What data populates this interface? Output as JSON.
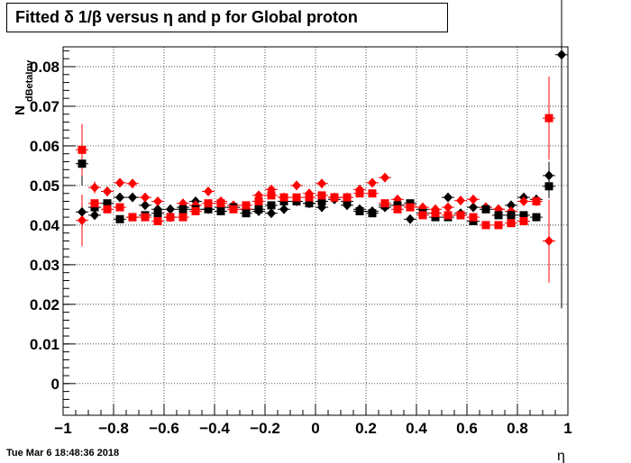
{
  "title": "Fitted δ 1/β versus η and p for Global proton",
  "timestamp": "Tue Mar  6 18:48:36 2018",
  "chart_data": {
    "type": "scatter",
    "title": "Fitted δ 1/β versus η and p for Global proton",
    "xlabel": "η",
    "ylabel": "dBetaInv",
    "ylabel_prefix": "N",
    "xlim": [
      -1,
      1
    ],
    "ylim": [
      -0.008,
      0.085
    ],
    "xticks": [
      -1,
      -0.8,
      -0.6,
      -0.4,
      -0.2,
      0,
      0.2,
      0.4,
      0.6,
      0.8,
      1
    ],
    "xticklabels": [
      "−1",
      "−0.8",
      "−0.6",
      "−0.4",
      "−0.2",
      "0",
      "0.2",
      "0.4",
      "0.6",
      "0.8",
      "1"
    ],
    "yticks": [
      0,
      0.01,
      0.02,
      0.03,
      0.04,
      0.05,
      0.06,
      0.07,
      0.08
    ],
    "yticklabels": [
      "0",
      "0.01",
      "0.02",
      "0.03",
      "0.04",
      "0.05",
      "0.06",
      "0.07",
      "0.08"
    ],
    "grid": true,
    "series": [
      {
        "marker": "diamond",
        "color": "#000000",
        "points": [
          {
            "x": -0.925,
            "y": 0.0433
          },
          {
            "x": -0.875,
            "y": 0.0425
          },
          {
            "x": -0.825,
            "y": 0.0485
          },
          {
            "x": -0.775,
            "y": 0.047
          },
          {
            "x": -0.725,
            "y": 0.047
          },
          {
            "x": -0.675,
            "y": 0.045
          },
          {
            "x": -0.625,
            "y": 0.044
          },
          {
            "x": -0.575,
            "y": 0.044
          },
          {
            "x": -0.525,
            "y": 0.0445
          },
          {
            "x": -0.475,
            "y": 0.046
          },
          {
            "x": -0.425,
            "y": 0.044
          },
          {
            "x": -0.375,
            "y": 0.0445
          },
          {
            "x": -0.325,
            "y": 0.0445
          },
          {
            "x": -0.275,
            "y": 0.044
          },
          {
            "x": -0.225,
            "y": 0.0435
          },
          {
            "x": -0.175,
            "y": 0.043
          },
          {
            "x": -0.125,
            "y": 0.044
          },
          {
            "x": -0.075,
            "y": 0.046
          },
          {
            "x": -0.025,
            "y": 0.0455
          },
          {
            "x": 0.025,
            "y": 0.0445
          },
          {
            "x": 0.075,
            "y": 0.0465
          },
          {
            "x": 0.125,
            "y": 0.045
          },
          {
            "x": 0.175,
            "y": 0.044
          },
          {
            "x": 0.225,
            "y": 0.0435
          },
          {
            "x": 0.275,
            "y": 0.0445
          },
          {
            "x": 0.325,
            "y": 0.045
          },
          {
            "x": 0.375,
            "y": 0.0415
          },
          {
            "x": 0.425,
            "y": 0.044
          },
          {
            "x": 0.475,
            "y": 0.043
          },
          {
            "x": 0.525,
            "y": 0.047
          },
          {
            "x": 0.575,
            "y": 0.043
          },
          {
            "x": 0.625,
            "y": 0.0445
          },
          {
            "x": 0.675,
            "y": 0.0445
          },
          {
            "x": 0.725,
            "y": 0.044
          },
          {
            "x": 0.775,
            "y": 0.045
          },
          {
            "x": 0.825,
            "y": 0.047
          },
          {
            "x": 0.875,
            "y": 0.0465
          },
          {
            "x": 0.925,
            "y": 0.0525,
            "err": 0.0035
          },
          {
            "x": 0.975,
            "y": 0.083,
            "err": 0.064
          }
        ]
      },
      {
        "marker": "diamond",
        "color": "#ff0000",
        "points": [
          {
            "x": -0.925,
            "y": 0.0412,
            "err": 0.0065
          },
          {
            "x": -0.875,
            "y": 0.0495,
            "err": 0.0015
          },
          {
            "x": -0.825,
            "y": 0.0485
          },
          {
            "x": -0.775,
            "y": 0.0507
          },
          {
            "x": -0.725,
            "y": 0.0505
          },
          {
            "x": -0.675,
            "y": 0.047
          },
          {
            "x": -0.625,
            "y": 0.046
          },
          {
            "x": -0.575,
            "y": 0.042
          },
          {
            "x": -0.525,
            "y": 0.0455
          },
          {
            "x": -0.475,
            "y": 0.045
          },
          {
            "x": -0.425,
            "y": 0.0485
          },
          {
            "x": -0.375,
            "y": 0.046
          },
          {
            "x": -0.325,
            "y": 0.045
          },
          {
            "x": -0.275,
            "y": 0.044
          },
          {
            "x": -0.225,
            "y": 0.0475
          },
          {
            "x": -0.175,
            "y": 0.049
          },
          {
            "x": -0.125,
            "y": 0.047
          },
          {
            "x": -0.075,
            "y": 0.05
          },
          {
            "x": -0.025,
            "y": 0.048
          },
          {
            "x": 0.025,
            "y": 0.0505
          },
          {
            "x": 0.075,
            "y": 0.047
          },
          {
            "x": 0.125,
            "y": 0.047
          },
          {
            "x": 0.175,
            "y": 0.049
          },
          {
            "x": 0.225,
            "y": 0.0507
          },
          {
            "x": 0.275,
            "y": 0.052
          },
          {
            "x": 0.325,
            "y": 0.0465
          },
          {
            "x": 0.375,
            "y": 0.045
          },
          {
            "x": 0.425,
            "y": 0.0445
          },
          {
            "x": 0.475,
            "y": 0.044
          },
          {
            "x": 0.525,
            "y": 0.0445
          },
          {
            "x": 0.575,
            "y": 0.0462
          },
          {
            "x": 0.625,
            "y": 0.0465
          },
          {
            "x": 0.675,
            "y": 0.0445
          },
          {
            "x": 0.725,
            "y": 0.044
          },
          {
            "x": 0.775,
            "y": 0.0435
          },
          {
            "x": 0.825,
            "y": 0.046
          },
          {
            "x": 0.875,
            "y": 0.046
          },
          {
            "x": 0.925,
            "y": 0.036,
            "err": 0.0105
          }
        ]
      },
      {
        "marker": "square",
        "color": "#000000",
        "points": [
          {
            "x": -0.925,
            "y": 0.0555,
            "err": 0.0055
          },
          {
            "x": -0.875,
            "y": 0.0445
          },
          {
            "x": -0.825,
            "y": 0.0455
          },
          {
            "x": -0.775,
            "y": 0.0415
          },
          {
            "x": -0.725,
            "y": 0.042
          },
          {
            "x": -0.675,
            "y": 0.0425
          },
          {
            "x": -0.625,
            "y": 0.043
          },
          {
            "x": -0.575,
            "y": 0.042
          },
          {
            "x": -0.525,
            "y": 0.044
          },
          {
            "x": -0.475,
            "y": 0.044
          },
          {
            "x": -0.425,
            "y": 0.044
          },
          {
            "x": -0.375,
            "y": 0.0435
          },
          {
            "x": -0.325,
            "y": 0.0445
          },
          {
            "x": -0.275,
            "y": 0.043
          },
          {
            "x": -0.225,
            "y": 0.044
          },
          {
            "x": -0.175,
            "y": 0.045
          },
          {
            "x": -0.125,
            "y": 0.046
          },
          {
            "x": -0.075,
            "y": 0.046
          },
          {
            "x": -0.025,
            "y": 0.0455
          },
          {
            "x": 0.025,
            "y": 0.046
          },
          {
            "x": 0.075,
            "y": 0.047
          },
          {
            "x": 0.125,
            "y": 0.046
          },
          {
            "x": 0.175,
            "y": 0.0435
          },
          {
            "x": 0.225,
            "y": 0.043
          },
          {
            "x": 0.275,
            "y": 0.045
          },
          {
            "x": 0.325,
            "y": 0.045
          },
          {
            "x": 0.375,
            "y": 0.0455
          },
          {
            "x": 0.425,
            "y": 0.043
          },
          {
            "x": 0.475,
            "y": 0.042
          },
          {
            "x": 0.525,
            "y": 0.042
          },
          {
            "x": 0.575,
            "y": 0.0425
          },
          {
            "x": 0.625,
            "y": 0.041
          },
          {
            "x": 0.675,
            "y": 0.044
          },
          {
            "x": 0.725,
            "y": 0.0425
          },
          {
            "x": 0.775,
            "y": 0.0425
          },
          {
            "x": 0.825,
            "y": 0.0425
          },
          {
            "x": 0.875,
            "y": 0.042
          },
          {
            "x": 0.925,
            "y": 0.0498,
            "err": 0.003
          }
        ]
      },
      {
        "marker": "square",
        "color": "#ff0000",
        "points": [
          {
            "x": -0.925,
            "y": 0.059,
            "err": 0.0065
          },
          {
            "x": -0.875,
            "y": 0.0455
          },
          {
            "x": -0.825,
            "y": 0.044
          },
          {
            "x": -0.775,
            "y": 0.0445
          },
          {
            "x": -0.725,
            "y": 0.042
          },
          {
            "x": -0.675,
            "y": 0.042
          },
          {
            "x": -0.625,
            "y": 0.041
          },
          {
            "x": -0.575,
            "y": 0.042
          },
          {
            "x": -0.525,
            "y": 0.042
          },
          {
            "x": -0.475,
            "y": 0.0435
          },
          {
            "x": -0.425,
            "y": 0.0455
          },
          {
            "x": -0.375,
            "y": 0.0455
          },
          {
            "x": -0.325,
            "y": 0.044
          },
          {
            "x": -0.275,
            "y": 0.045
          },
          {
            "x": -0.225,
            "y": 0.046
          },
          {
            "x": -0.175,
            "y": 0.0475
          },
          {
            "x": -0.125,
            "y": 0.047
          },
          {
            "x": -0.075,
            "y": 0.047
          },
          {
            "x": -0.025,
            "y": 0.047
          },
          {
            "x": 0.025,
            "y": 0.0475
          },
          {
            "x": 0.075,
            "y": 0.047
          },
          {
            "x": 0.125,
            "y": 0.047
          },
          {
            "x": 0.175,
            "y": 0.048
          },
          {
            "x": 0.225,
            "y": 0.048
          },
          {
            "x": 0.275,
            "y": 0.0455
          },
          {
            "x": 0.325,
            "y": 0.044
          },
          {
            "x": 0.375,
            "y": 0.0445
          },
          {
            "x": 0.425,
            "y": 0.0425
          },
          {
            "x": 0.475,
            "y": 0.043
          },
          {
            "x": 0.525,
            "y": 0.0425
          },
          {
            "x": 0.575,
            "y": 0.0425
          },
          {
            "x": 0.625,
            "y": 0.042
          },
          {
            "x": 0.675,
            "y": 0.04
          },
          {
            "x": 0.725,
            "y": 0.04
          },
          {
            "x": 0.775,
            "y": 0.0405
          },
          {
            "x": 0.825,
            "y": 0.041
          },
          {
            "x": 0.875,
            "y": 0.046
          },
          {
            "x": 0.925,
            "y": 0.067,
            "err": 0.0105
          }
        ]
      }
    ]
  }
}
